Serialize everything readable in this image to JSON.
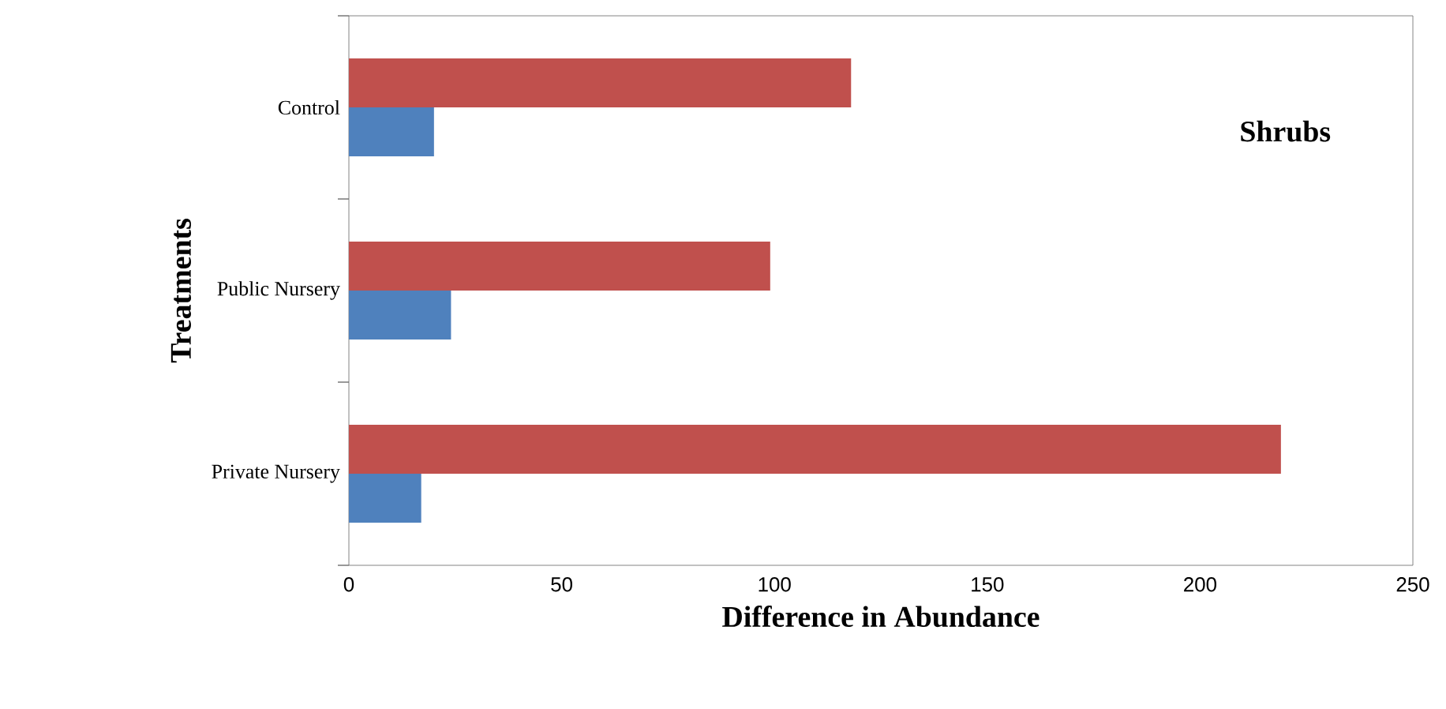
{
  "chart_data": {
    "type": "bar",
    "orientation": "horizontal",
    "categories": [
      "Control",
      "Public Nursery",
      "Private Nursery"
    ],
    "series": [
      {
        "color": "#c0504d",
        "values": [
          118,
          99,
          219
        ]
      },
      {
        "color": "#4f81bd",
        "values": [
          20,
          24,
          17
        ]
      }
    ],
    "xlim": [
      0,
      250
    ],
    "xticks": [
      0,
      50,
      100,
      150,
      200,
      250
    ],
    "xlabel": "Difference in Abundance",
    "ylabel": "Treatments",
    "annotations": [
      "Shrubs"
    ],
    "grid": false
  }
}
